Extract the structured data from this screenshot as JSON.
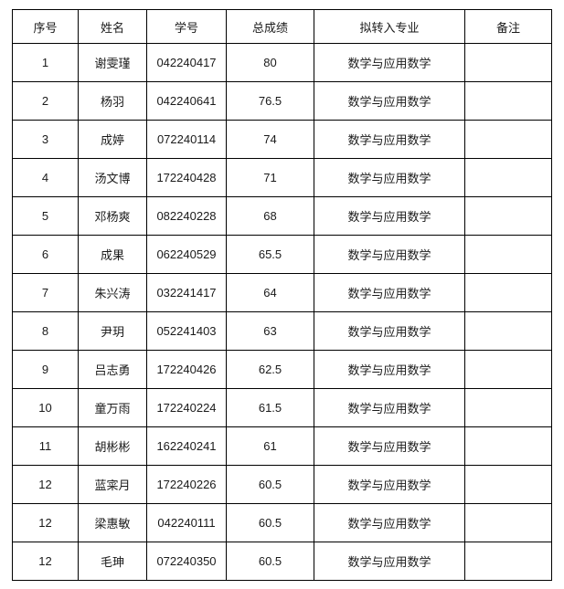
{
  "table": {
    "headers": [
      "序号",
      "姓名",
      "学号",
      "总成绩",
      "拟转入专业",
      "备注"
    ],
    "rows": [
      [
        "1",
        "谢雯瑾",
        "042240417",
        "80",
        "数学与应用数学",
        ""
      ],
      [
        "2",
        "杨羽",
        "042240641",
        "76.5",
        "数学与应用数学",
        ""
      ],
      [
        "3",
        "成婷",
        "072240114",
        "74",
        "数学与应用数学",
        ""
      ],
      [
        "4",
        "汤文博",
        "172240428",
        "71",
        "数学与应用数学",
        ""
      ],
      [
        "5",
        "邓杨爽",
        "082240228",
        "68",
        "数学与应用数学",
        ""
      ],
      [
        "6",
        "成果",
        "062240529",
        "65.5",
        "数学与应用数学",
        ""
      ],
      [
        "7",
        "朱兴涛",
        "032241417",
        "64",
        "数学与应用数学",
        ""
      ],
      [
        "8",
        "尹玥",
        "052241403",
        "63",
        "数学与应用数学",
        ""
      ],
      [
        "9",
        "吕志勇",
        "172240426",
        "62.5",
        "数学与应用数学",
        ""
      ],
      [
        "10",
        "童万雨",
        "172240224",
        "61.5",
        "数学与应用数学",
        ""
      ],
      [
        "11",
        "胡彬彬",
        "162240241",
        "61",
        "数学与应用数学",
        ""
      ],
      [
        "12",
        "蓝寀月",
        "172240226",
        "60.5",
        "数学与应用数学",
        ""
      ],
      [
        "12",
        "梁惠敏",
        "042240111",
        "60.5",
        "数学与应用数学",
        ""
      ],
      [
        "12",
        "毛珅",
        "072240350",
        "60.5",
        "数学与应用数学",
        ""
      ]
    ],
    "column_names": [
      "index",
      "name",
      "student-id",
      "total-score",
      "target-major",
      "remark"
    ],
    "text_color": "#1a1a1a",
    "border_color": "#000000"
  }
}
